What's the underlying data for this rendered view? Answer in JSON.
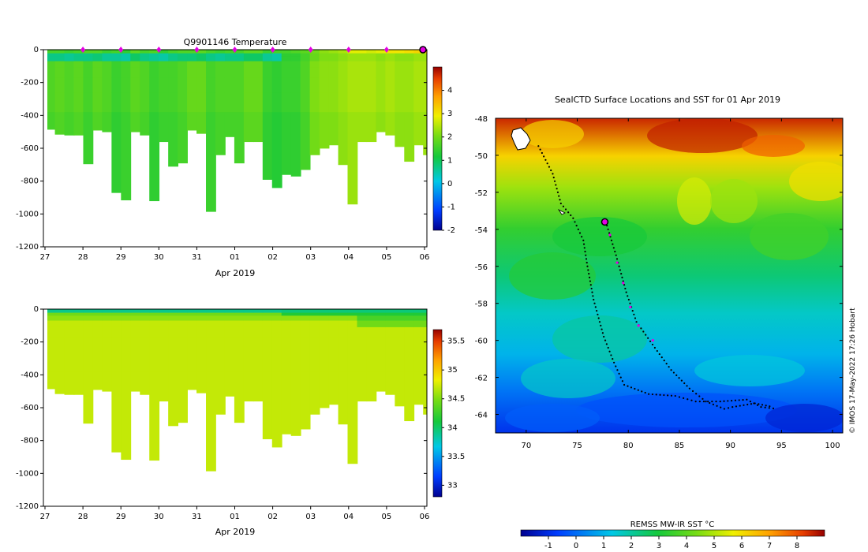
{
  "chart_data": [
    {
      "type": "heatmap",
      "title": "Q9901146  Temperature",
      "xlabel": "Apr 2019",
      "ylabel": "",
      "x_tick_labels": [
        "27",
        "28",
        "29",
        "30",
        "31",
        "01",
        "02",
        "03",
        "04",
        "05",
        "06"
      ],
      "y_tick_labels": [
        "0",
        "-200",
        "-400",
        "-600",
        "-800",
        "-1000",
        "-1200"
      ],
      "ylim": [
        -1200,
        0
      ],
      "colorbar": {
        "range": [
          -2,
          5
        ],
        "tick_labels": [
          "4",
          "3",
          "2",
          "1",
          "0",
          "-1",
          "-2"
        ]
      },
      "profile_markers": 9,
      "columns": [
        {
          "day": 0.0,
          "depth": 485,
          "surface": 1.6,
          "deep": 1.7
        },
        {
          "day": 0.2,
          "depth": 515,
          "surface": 1.6,
          "deep": 1.8
        },
        {
          "day": 0.45,
          "depth": 520,
          "surface": 1.5,
          "deep": 1.7
        },
        {
          "day": 0.7,
          "depth": 520,
          "surface": 1.6,
          "deep": 1.8
        },
        {
          "day": 0.95,
          "depth": 695,
          "surface": 1.7,
          "deep": 1.6
        },
        {
          "day": 1.2,
          "depth": 490,
          "surface": 1.7,
          "deep": 1.8
        },
        {
          "day": 1.45,
          "depth": 500,
          "surface": 1.5,
          "deep": 1.7
        },
        {
          "day": 1.7,
          "depth": 870,
          "surface": 1.6,
          "deep": 1.5
        },
        {
          "day": 1.95,
          "depth": 915,
          "surface": 1.4,
          "deep": 1.6
        },
        {
          "day": 2.2,
          "depth": 500,
          "surface": 1.8,
          "deep": 1.8
        },
        {
          "day": 2.45,
          "depth": 520,
          "surface": 1.6,
          "deep": 1.7
        },
        {
          "day": 2.7,
          "depth": 920,
          "surface": 1.7,
          "deep": 1.5
        },
        {
          "day": 2.95,
          "depth": 560,
          "surface": 1.4,
          "deep": 1.6
        },
        {
          "day": 3.2,
          "depth": 710,
          "surface": 1.6,
          "deep": 1.6
        },
        {
          "day": 3.45,
          "depth": 690,
          "surface": 1.7,
          "deep": 1.7
        },
        {
          "day": 3.7,
          "depth": 490,
          "surface": 1.7,
          "deep": 1.9
        },
        {
          "day": 3.95,
          "depth": 510,
          "surface": 1.8,
          "deep": 1.9
        },
        {
          "day": 4.2,
          "depth": 985,
          "surface": 1.6,
          "deep": 1.6
        },
        {
          "day": 4.45,
          "depth": 640,
          "surface": 1.5,
          "deep": 1.7
        },
        {
          "day": 4.7,
          "depth": 530,
          "surface": 1.6,
          "deep": 1.7
        },
        {
          "day": 4.95,
          "depth": 690,
          "surface": 1.6,
          "deep": 1.7
        },
        {
          "day": 5.2,
          "depth": 560,
          "surface": 1.8,
          "deep": 1.9
        },
        {
          "day": 5.45,
          "depth": 560,
          "surface": 1.8,
          "deep": 1.9
        },
        {
          "day": 5.7,
          "depth": 790,
          "surface": 1.5,
          "deep": 1.5
        },
        {
          "day": 5.95,
          "depth": 840,
          "surface": 1.6,
          "deep": 1.4
        },
        {
          "day": 6.2,
          "depth": 760,
          "surface": 1.6,
          "deep": 1.5
        },
        {
          "day": 6.45,
          "depth": 770,
          "surface": 1.7,
          "deep": 1.5
        },
        {
          "day": 6.7,
          "depth": 730,
          "surface": 1.8,
          "deep": 1.7
        },
        {
          "day": 6.95,
          "depth": 640,
          "surface": 2.0,
          "deep": 2.1
        },
        {
          "day": 7.2,
          "depth": 600,
          "surface": 2.2,
          "deep": 2.2
        },
        {
          "day": 7.45,
          "depth": 580,
          "surface": 2.3,
          "deep": 2.2
        },
        {
          "day": 7.7,
          "depth": 700,
          "surface": 2.4,
          "deep": 2.3
        },
        {
          "day": 7.95,
          "depth": 940,
          "surface": 2.8,
          "deep": 2.4
        },
        {
          "day": 8.2,
          "depth": 560,
          "surface": 2.8,
          "deep": 2.4
        },
        {
          "day": 8.45,
          "depth": 560,
          "surface": 2.7,
          "deep": 2.4
        },
        {
          "day": 8.7,
          "depth": 500,
          "surface": 2.8,
          "deep": 2.3
        },
        {
          "day": 8.95,
          "depth": 520,
          "surface": 3.0,
          "deep": 2.4
        },
        {
          "day": 9.2,
          "depth": 590,
          "surface": 3.0,
          "deep": 2.3
        },
        {
          "day": 9.45,
          "depth": 680,
          "surface": 3.1,
          "deep": 2.3
        },
        {
          "day": 9.7,
          "depth": 580,
          "surface": 3.2,
          "deep": 2.4
        },
        {
          "day": 9.95,
          "depth": 640,
          "surface": 3.3,
          "deep": 2.4
        }
      ]
    },
    {
      "type": "heatmap",
      "title": "",
      "xlabel": "Apr 2019",
      "ylabel": "",
      "x_tick_labels": [
        "27",
        "28",
        "29",
        "30",
        "31",
        "01",
        "02",
        "03",
        "04",
        "05",
        "06"
      ],
      "y_tick_labels": [
        "0",
        "-200",
        "-400",
        "-600",
        "-800",
        "-1000",
        "-1200"
      ],
      "ylim": [
        -1200,
        0
      ],
      "colorbar": {
        "range": [
          32.8,
          35.7
        ],
        "tick_labels": [
          "35.5",
          "35",
          "34.5",
          "34",
          "33.5",
          "33"
        ]
      },
      "surface_salinity": 33.9,
      "deep_salinity": 34.7
    },
    {
      "type": "heatmap",
      "title": "SealCTD Surface Locations and SST for 01 Apr 2019",
      "xlabel": "",
      "ylabel": "",
      "x_tick_labels": [
        "70",
        "75",
        "80",
        "85",
        "90",
        "95",
        "100"
      ],
      "y_tick_labels": [
        "-48",
        "-50",
        "-52",
        "-54",
        "-56",
        "-58",
        "-60",
        "-62",
        "-64"
      ],
      "xlim": [
        67,
        101
      ],
      "ylim": [
        -65,
        -48
      ],
      "colorbar": {
        "label": "REMSS MW-IR SST °C",
        "range": [
          -2,
          9
        ],
        "tick_labels": [
          "-1",
          "0",
          "1",
          "2",
          "3",
          "4",
          "5",
          "6",
          "7",
          "8"
        ]
      },
      "track": [
        [
          71.2,
          -49.5
        ],
        [
          72.6,
          -51.0
        ],
        [
          73.4,
          -52.6
        ],
        [
          74.6,
          -53.4
        ],
        [
          75.6,
          -54.6
        ],
        [
          76.0,
          -56.0
        ],
        [
          76.6,
          -57.8
        ],
        [
          77.6,
          -59.8
        ],
        [
          78.6,
          -61.2
        ],
        [
          79.6,
          -62.4
        ],
        [
          82.0,
          -62.9
        ],
        [
          84.6,
          -63.0
        ],
        [
          86.6,
          -63.3
        ],
        [
          89.0,
          -63.3
        ],
        [
          91.6,
          -63.2
        ],
        [
          93.0,
          -63.6
        ],
        [
          94.6,
          -63.7
        ]
      ],
      "track2": [
        [
          77.8,
          -53.6
        ],
        [
          78.8,
          -55.4
        ],
        [
          79.8,
          -57.4
        ],
        [
          80.8,
          -59.0
        ],
        [
          82.6,
          -60.4
        ],
        [
          84.2,
          -61.6
        ],
        [
          86.0,
          -62.6
        ],
        [
          87.6,
          -63.3
        ],
        [
          89.4,
          -63.7
        ],
        [
          90.2,
          -63.6
        ],
        [
          92.4,
          -63.4
        ],
        [
          94.2,
          -63.6
        ]
      ],
      "recent_points": [
        [
          78.2,
          -54.3
        ],
        [
          78.9,
          -55.8
        ],
        [
          79.5,
          -56.9
        ],
        [
          80.2,
          -58.2
        ],
        [
          81.0,
          -59.2
        ],
        [
          82.4,
          -60.0
        ]
      ],
      "highlight": [
        77.7,
        -53.6
      ]
    }
  ],
  "credit": "© IMOS 17-May-2022 17:26 Hobart"
}
